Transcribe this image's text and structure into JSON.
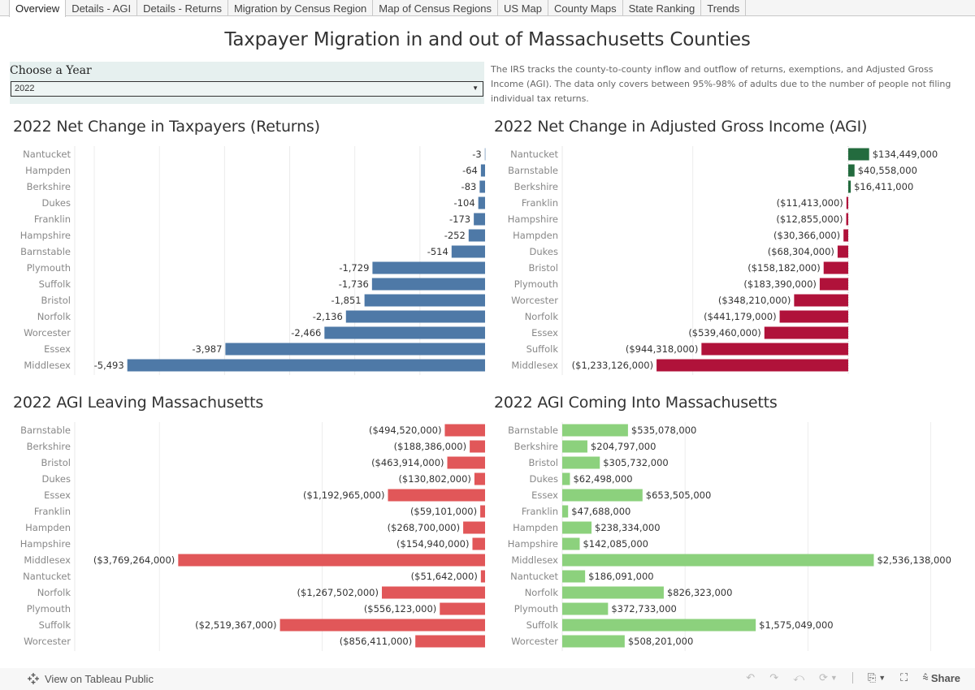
{
  "tabs": [
    "Overview",
    "Details - AGI",
    "Details - Returns",
    "Migration by Census Region",
    "Map of Census Regions",
    "US Map",
    "County Maps",
    "State Ranking",
    "Trends"
  ],
  "active_tab": 0,
  "title": "Taxpayer Migration in and out of Massachusetts Counties",
  "filter": {
    "label": "Choose a Year",
    "value": "2022"
  },
  "description": "The IRS tracks the county-to-county inflow and outflow of returns, exemptions, and Adjusted Gross Income (AGI). The data only covers between 95%-98% of adults due to the number of people not filing individual tax returns.",
  "colors": {
    "returns": "#4e79a7",
    "agi_positive": "#236b3e",
    "agi_negative": "#b0123a",
    "leaving": "#e15759",
    "coming": "#8cd17d"
  },
  "chart_data": [
    {
      "id": "returns",
      "type": "bar",
      "orientation": "horizontal",
      "title": "2022 Net Change in Taxpayers (Returns)",
      "categories": [
        "Nantucket",
        "Hampden",
        "Berkshire",
        "Dukes",
        "Franklin",
        "Hampshire",
        "Barnstable",
        "Plymouth",
        "Suffolk",
        "Bristol",
        "Norfolk",
        "Worcester",
        "Essex",
        "Middlesex"
      ],
      "values": [
        -3,
        -64,
        -83,
        -104,
        -173,
        -252,
        -514,
        -1729,
        -1736,
        -1851,
        -2136,
        -2466,
        -3987,
        -5493
      ],
      "labels": [
        "-3",
        "-64",
        "-83",
        "-104",
        "-173",
        "-252",
        "-514",
        "-1,729",
        "-1,736",
        "-1,851",
        "-2,136",
        "-2,466",
        "-3,987",
        "-5,493"
      ],
      "xlim": [
        -6300,
        0
      ],
      "gridlines": [
        -6000,
        -5000,
        -4000,
        -3000,
        -2000,
        -1000
      ],
      "color": "#4e79a7"
    },
    {
      "id": "agi_net",
      "type": "bar",
      "orientation": "horizontal",
      "title": "2022 Net Change in Adjusted Gross Income (AGI)",
      "categories": [
        "Nantucket",
        "Barnstable",
        "Berkshire",
        "Franklin",
        "Hampshire",
        "Hampden",
        "Dukes",
        "Bristol",
        "Plymouth",
        "Worcester",
        "Norfolk",
        "Essex",
        "Suffolk",
        "Middlesex"
      ],
      "values": [
        134449000,
        40558000,
        16411000,
        -11413000,
        -12855000,
        -30366000,
        -68304000,
        -158182000,
        -183390000,
        -348210000,
        -441179000,
        -539460000,
        -944318000,
        -1233126000
      ],
      "labels": [
        "$134,449,000",
        "$40,558,000",
        "$16,411,000",
        "($11,413,000)",
        "($12,855,000)",
        "($30,366,000)",
        "($68,304,000)",
        "($158,182,000)",
        "($183,390,000)",
        "($348,210,000)",
        "($441,179,000)",
        "($539,460,000)",
        "($944,318,000)",
        "($1,233,126,000)"
      ],
      "xlim": [
        -1840000000,
        800000000
      ],
      "gridlines": [
        -1000000000
      ],
      "color_positive": "#236b3e",
      "color_negative": "#b0123a"
    },
    {
      "id": "leaving",
      "type": "bar",
      "orientation": "horizontal",
      "title": "2022 AGI Leaving Massachusetts",
      "categories": [
        "Barnstable",
        "Berkshire",
        "Bristol",
        "Dukes",
        "Essex",
        "Franklin",
        "Hampden",
        "Hampshire",
        "Middlesex",
        "Nantucket",
        "Norfolk",
        "Plymouth",
        "Suffolk",
        "Worcester"
      ],
      "values": [
        -494520000,
        -188386000,
        -463914000,
        -130802000,
        -1192965000,
        -59101000,
        -268700000,
        -154940000,
        -3769264000,
        -51642000,
        -1267502000,
        -556123000,
        -2519367000,
        -856411000
      ],
      "labels": [
        "($494,520,000)",
        "($188,386,000)",
        "($463,914,000)",
        "($130,802,000)",
        "($1,192,965,000)",
        "($59,101,000)",
        "($268,700,000)",
        "($154,940,000)",
        "($3,769,264,000)",
        "($51,642,000)",
        "($1,267,502,000)",
        "($556,123,000)",
        "($2,519,367,000)",
        "($856,411,000)"
      ],
      "xlim": [
        -5040000000,
        0
      ],
      "gridlines": [
        -4000000000,
        -2000000000
      ],
      "color": "#e15759"
    },
    {
      "id": "coming",
      "type": "bar",
      "orientation": "horizontal",
      "title": "2022 AGI Coming Into Massachusetts",
      "categories": [
        "Barnstable",
        "Berkshire",
        "Bristol",
        "Dukes",
        "Essex",
        "Franklin",
        "Hampden",
        "Hampshire",
        "Middlesex",
        "Nantucket",
        "Norfolk",
        "Plymouth",
        "Suffolk",
        "Worcester"
      ],
      "values": [
        535078000,
        204797000,
        305732000,
        62498000,
        653505000,
        47688000,
        238334000,
        142085000,
        2536138000,
        186091000,
        826323000,
        372733000,
        1575049000,
        508201000
      ],
      "labels": [
        "$535,078,000",
        "$204,797,000",
        "$305,732,000",
        "$62,498,000",
        "$653,505,000",
        "$47,688,000",
        "$238,334,000",
        "$142,085,000",
        "$2,536,138,000",
        "$186,091,000",
        "$826,323,000",
        "$372,733,000",
        "$1,575,049,000",
        "$508,201,000"
      ],
      "xlim": [
        0,
        3340000000
      ],
      "gridlines": [
        1000000000,
        2000000000,
        3000000000
      ],
      "color": "#8cd17d"
    }
  ],
  "footer": {
    "tableau_link": "View on Tableau Public",
    "share_label": "Share",
    "icons": [
      "undo-icon",
      "redo-icon",
      "revert-icon",
      "refresh-icon",
      "dropdown-icon",
      "download-icon",
      "fullscreen-icon",
      "share-icon"
    ]
  }
}
